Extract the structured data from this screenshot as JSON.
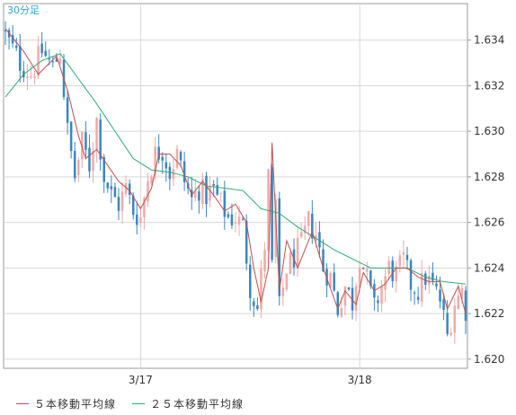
{
  "period_label": "30分足",
  "legend": {
    "ma5_label": "５本移動平均線",
    "ma25_label": "２５本移動平均線"
  },
  "colors": {
    "up": "#f2a9a6",
    "down": "#3b86c2",
    "ma5": "#c0504d",
    "ma25": "#2daa78",
    "grid": "#d6d6d6",
    "axis": "#9a9a9a",
    "period_label": "#29a3d6"
  },
  "chart_data": {
    "type": "candlestick",
    "title": "",
    "ylim": [
      1.6196,
      1.6356
    ],
    "y_ticks": [
      "1.620",
      "1.622",
      "1.624",
      "1.626",
      "1.628",
      "1.630",
      "1.632",
      "1.634"
    ],
    "x_ticks": [
      "3/17",
      "3/18"
    ],
    "x_tick_index": [
      37,
      97
    ],
    "candle_count": 127,
    "series": [
      {
        "name": "５本移動平均線",
        "color": "#c0504d"
      },
      {
        "name": "２５本移動平均線",
        "color": "#2daa78"
      }
    ],
    "ma5_anchors": [
      [
        0,
        1.6345
      ],
      [
        5,
        1.6335
      ],
      [
        9,
        1.6325
      ],
      [
        14,
        1.6333
      ],
      [
        17,
        1.6318
      ],
      [
        20,
        1.6298
      ],
      [
        22,
        1.6288
      ],
      [
        25,
        1.6292
      ],
      [
        28,
        1.6285
      ],
      [
        31,
        1.6278
      ],
      [
        34,
        1.6274
      ],
      [
        37,
        1.6266
      ],
      [
        40,
        1.6275
      ],
      [
        42,
        1.629
      ],
      [
        45,
        1.629
      ],
      [
        48,
        1.6285
      ],
      [
        51,
        1.6272
      ],
      [
        54,
        1.6278
      ],
      [
        57,
        1.6272
      ],
      [
        60,
        1.6265
      ],
      [
        63,
        1.6268
      ],
      [
        66,
        1.626
      ],
      [
        68,
        1.624
      ],
      [
        70,
        1.6225
      ],
      [
        72,
        1.624
      ],
      [
        73,
        1.6295
      ],
      [
        75,
        1.623
      ],
      [
        77,
        1.6252
      ],
      [
        80,
        1.624
      ],
      [
        84,
        1.6256
      ],
      [
        87,
        1.624
      ],
      [
        91,
        1.6222
      ],
      [
        93,
        1.623
      ],
      [
        96,
        1.6224
      ],
      [
        98,
        1.6238
      ],
      [
        101,
        1.623
      ],
      [
        104,
        1.6233
      ],
      [
        107,
        1.624
      ],
      [
        110,
        1.624
      ],
      [
        113,
        1.6236
      ],
      [
        116,
        1.6234
      ],
      [
        119,
        1.6234
      ],
      [
        121,
        1.6222
      ],
      [
        124,
        1.6232
      ],
      [
        126,
        1.622
      ]
    ],
    "ma25_anchors": [
      [
        0,
        1.6315
      ],
      [
        5,
        1.6325
      ],
      [
        10,
        1.6331
      ],
      [
        15,
        1.6334
      ],
      [
        20,
        1.6323
      ],
      [
        25,
        1.6312
      ],
      [
        30,
        1.63
      ],
      [
        35,
        1.6288
      ],
      [
        40,
        1.6283
      ],
      [
        45,
        1.6282
      ],
      [
        50,
        1.628
      ],
      [
        55,
        1.6276
      ],
      [
        60,
        1.6275
      ],
      [
        65,
        1.6274
      ],
      [
        70,
        1.6266
      ],
      [
        75,
        1.6264
      ],
      [
        80,
        1.6258
      ],
      [
        85,
        1.6253
      ],
      [
        90,
        1.6248
      ],
      [
        95,
        1.6244
      ],
      [
        100,
        1.624
      ],
      [
        105,
        1.624
      ],
      [
        110,
        1.624
      ],
      [
        115,
        1.6236
      ],
      [
        120,
        1.6234
      ],
      [
        126,
        1.6233
      ]
    ],
    "close_anchors": [
      [
        0,
        1.6342
      ],
      [
        4,
        1.633
      ],
      [
        7,
        1.6325
      ],
      [
        10,
        1.6335
      ],
      [
        13,
        1.6328
      ],
      [
        15,
        1.6335
      ],
      [
        17,
        1.63
      ],
      [
        19,
        1.628
      ],
      [
        21,
        1.6295
      ],
      [
        23,
        1.6285
      ],
      [
        25,
        1.6305
      ],
      [
        27,
        1.628
      ],
      [
        29,
        1.6272
      ],
      [
        31,
        1.6268
      ],
      [
        33,
        1.6275
      ],
      [
        35,
        1.6265
      ],
      [
        37,
        1.6262
      ],
      [
        39,
        1.628
      ],
      [
        41,
        1.629
      ],
      [
        43,
        1.6292
      ],
      [
        45,
        1.6282
      ],
      [
        47,
        1.629
      ],
      [
        49,
        1.6278
      ],
      [
        51,
        1.627
      ],
      [
        53,
        1.6275
      ],
      [
        55,
        1.6272
      ],
      [
        57,
        1.6274
      ],
      [
        59,
        1.6268
      ],
      [
        61,
        1.6262
      ],
      [
        63,
        1.6262
      ],
      [
        65,
        1.6258
      ],
      [
        67,
        1.6232
      ],
      [
        69,
        1.6222
      ],
      [
        71,
        1.625
      ],
      [
        72,
        1.628
      ],
      [
        73,
        1.624
      ],
      [
        74,
        1.6268
      ],
      [
        75,
        1.6222
      ],
      [
        77,
        1.624
      ],
      [
        79,
        1.6245
      ],
      [
        81,
        1.625
      ],
      [
        83,
        1.626
      ],
      [
        85,
        1.6255
      ],
      [
        87,
        1.624
      ],
      [
        89,
        1.6236
      ],
      [
        91,
        1.6222
      ],
      [
        93,
        1.6232
      ],
      [
        95,
        1.6225
      ],
      [
        97,
        1.6246
      ],
      [
        99,
        1.6235
      ],
      [
        101,
        1.6222
      ],
      [
        103,
        1.6232
      ],
      [
        105,
        1.624
      ],
      [
        107,
        1.6237
      ],
      [
        109,
        1.6243
      ],
      [
        111,
        1.6233
      ],
      [
        113,
        1.623
      ],
      [
        115,
        1.6236
      ],
      [
        117,
        1.6232
      ],
      [
        119,
        1.6226
      ],
      [
        121,
        1.621
      ],
      [
        123,
        1.6225
      ],
      [
        125,
        1.623
      ],
      [
        126,
        1.6222
      ]
    ]
  }
}
